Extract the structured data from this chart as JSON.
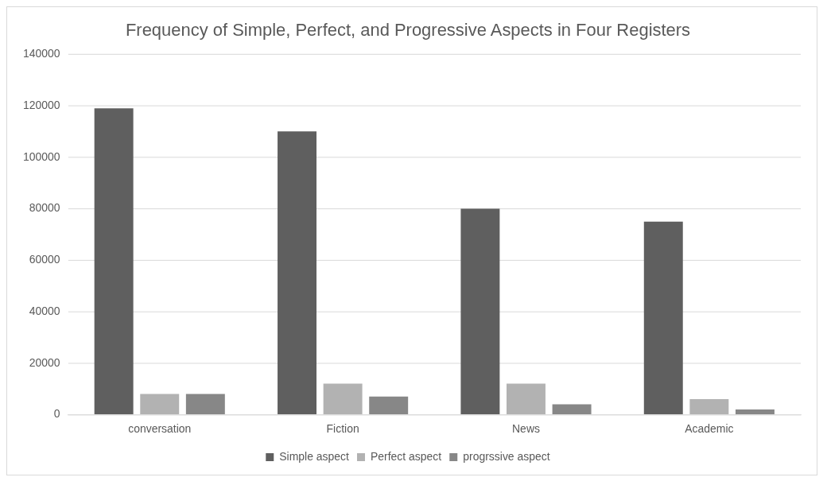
{
  "chart_data": {
    "type": "bar",
    "title": "Frequency of Simple, Perfect, and Progressive Aspects in Four Registers",
    "categories": [
      "conversation",
      "Fiction",
      "News",
      "Academic"
    ],
    "series": [
      {
        "name": "Simple aspect",
        "color": "#5f5f5f",
        "values": [
          119000,
          110000,
          80000,
          75000
        ]
      },
      {
        "name": "Perfect aspect",
        "color": "#b2b2b2",
        "values": [
          8000,
          12000,
          12000,
          6000
        ]
      },
      {
        "name": "progrssive aspect",
        "color": "#878787",
        "values": [
          8000,
          7000,
          4000,
          2000
        ]
      }
    ],
    "ylim": [
      0,
      140000
    ],
    "yticks": [
      0,
      20000,
      40000,
      60000,
      80000,
      100000,
      120000,
      140000
    ],
    "grid": "y",
    "legend": "bottom"
  }
}
